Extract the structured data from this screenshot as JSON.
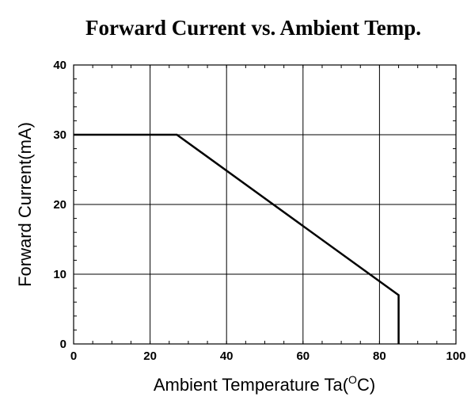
{
  "chart_data": {
    "type": "line",
    "title": "Forward Current vs. Ambient Temp.",
    "xlabel_prefix": "Ambient Temperature Ta(",
    "xlabel_degree": "O",
    "xlabel_suffix": "C)",
    "ylabel": "Forward Current(mA)",
    "xlim": [
      0,
      100
    ],
    "ylim": [
      0,
      40
    ],
    "xticks": [
      "0",
      "20",
      "40",
      "60",
      "80",
      "100"
    ],
    "yticks": [
      "0",
      "10",
      "20",
      "30",
      "40"
    ],
    "grid": true,
    "series": [
      {
        "x": [
          0,
          27,
          85,
          85
        ],
        "y": [
          30,
          30,
          7,
          0
        ],
        "color": "#000000"
      }
    ]
  }
}
